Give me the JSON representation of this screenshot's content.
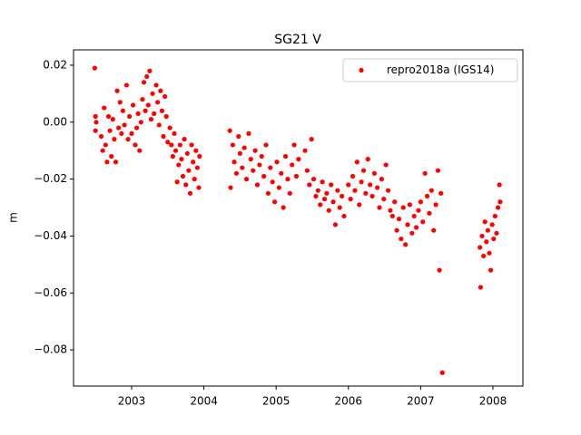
{
  "chart_data": {
    "type": "scatter",
    "title": "SG21 V",
    "y_label": "m",
    "xlim": [
      2002.196,
      2008.415
    ],
    "xticks": [
      2003,
      2004,
      2005,
      2006,
      2007,
      2008
    ],
    "ylim": [
      -0.0927,
      0.0254
    ],
    "yticks": [
      {
        "value": 0.02,
        "label": "0.02"
      },
      {
        "value": 0.0,
        "label": "0.00"
      },
      {
        "value": -0.02,
        "label": "−0.02"
      },
      {
        "value": -0.04,
        "label": "−0.04"
      },
      {
        "value": -0.06,
        "label": "−0.06"
      },
      {
        "value": -0.08,
        "label": "−0.08"
      }
    ],
    "grid": false,
    "legend_position": "upper right",
    "x": [
      2002.49,
      2002.5,
      2002.5,
      2002.51,
      2002.58,
      2002.6,
      2002.62,
      2002.64,
      2002.66,
      2002.68,
      2002.7,
      2002.72,
      2002.74,
      2002.76,
      2002.78,
      2002.8,
      2002.82,
      2002.84,
      2002.86,
      2002.88,
      2002.9,
      2002.93,
      2002.95,
      2002.97,
      2003.0,
      2003.02,
      2003.05,
      2003.07,
      2003.09,
      2003.11,
      2003.13,
      2003.15,
      2003.17,
      2003.19,
      2003.21,
      2003.23,
      2003.25,
      2003.27,
      2003.29,
      2003.31,
      2003.34,
      2003.36,
      2003.38,
      2003.4,
      2003.42,
      2003.44,
      2003.46,
      2003.48,
      2003.5,
      2003.53,
      2003.55,
      2003.57,
      2003.59,
      2003.61,
      2003.63,
      2003.65,
      2003.67,
      2003.69,
      2003.71,
      2003.73,
      2003.75,
      2003.77,
      2003.79,
      2003.81,
      2003.83,
      2003.85,
      2003.87,
      2003.89,
      2003.91,
      2003.93,
      2003.94,
      2004.36,
      2004.37,
      2004.4,
      2004.42,
      2004.45,
      2004.48,
      2004.5,
      2004.53,
      2004.56,
      2004.59,
      2004.62,
      2004.65,
      2004.68,
      2004.71,
      2004.74,
      2004.77,
      2004.8,
      2004.83,
      2004.86,
      2004.89,
      2004.92,
      2004.95,
      2004.98,
      2005.01,
      2005.04,
      2005.07,
      2005.1,
      2005.13,
      2005.16,
      2005.19,
      2005.22,
      2005.25,
      2005.28,
      2005.31,
      2005.4,
      2005.43,
      2005.46,
      2005.49,
      2005.52,
      2005.55,
      2005.58,
      2005.61,
      2005.64,
      2005.67,
      2005.7,
      2005.73,
      2005.76,
      2005.79,
      2005.82,
      2005.85,
      2005.88,
      2005.91,
      2005.94,
      2006.0,
      2006.03,
      2006.06,
      2006.09,
      2006.12,
      2006.15,
      2006.18,
      2006.21,
      2006.24,
      2006.27,
      2006.3,
      2006.33,
      2006.36,
      2006.4,
      2006.43,
      2006.46,
      2006.49,
      2006.52,
      2006.55,
      2006.58,
      2006.61,
      2006.64,
      2006.67,
      2006.7,
      2006.73,
      2006.76,
      2006.79,
      2006.82,
      2006.85,
      2006.88,
      2006.91,
      2006.94,
      2006.97,
      2007.0,
      2007.03,
      2007.06,
      2007.09,
      2007.12,
      2007.15,
      2007.18,
      2007.21,
      2007.24,
      2007.26,
      2007.28,
      2007.3,
      2007.82,
      2007.83,
      2007.85,
      2007.87,
      2007.89,
      2007.91,
      2007.93,
      2007.95,
      2007.97,
      2007.99,
      2008.01,
      2008.03,
      2008.05,
      2008.07,
      2008.09,
      2008.1
    ],
    "series": [
      {
        "name": "repro2018a (IGS14)",
        "color": "#ff0000",
        "values": [
          0.019,
          0.002,
          -0.003,
          0.0,
          -0.005,
          -0.01,
          0.005,
          -0.008,
          -0.014,
          0.002,
          -0.003,
          -0.012,
          0.001,
          -0.006,
          -0.014,
          0.011,
          -0.002,
          0.007,
          -0.004,
          0.004,
          -0.001,
          0.013,
          -0.006,
          0.002,
          -0.004,
          0.006,
          -0.008,
          -0.002,
          0.003,
          -0.01,
          0.0,
          0.008,
          0.014,
          0.004,
          0.016,
          0.006,
          0.018,
          0.001,
          0.01,
          0.003,
          0.013,
          0.007,
          -0.001,
          0.011,
          0.004,
          -0.005,
          0.009,
          0.002,
          -0.007,
          -0.002,
          -0.008,
          -0.012,
          -0.004,
          -0.01,
          -0.021,
          -0.015,
          -0.008,
          -0.013,
          -0.019,
          -0.006,
          -0.022,
          -0.011,
          -0.017,
          -0.025,
          -0.008,
          -0.014,
          -0.02,
          -0.01,
          -0.016,
          -0.023,
          -0.012,
          -0.003,
          -0.023,
          -0.008,
          -0.014,
          -0.018,
          -0.005,
          -0.011,
          -0.016,
          -0.009,
          -0.02,
          -0.004,
          -0.013,
          -0.017,
          -0.01,
          -0.022,
          -0.015,
          -0.012,
          -0.019,
          -0.008,
          -0.025,
          -0.016,
          -0.021,
          -0.028,
          -0.014,
          -0.023,
          -0.018,
          -0.03,
          -0.012,
          -0.02,
          -0.025,
          -0.015,
          -0.008,
          -0.019,
          -0.013,
          -0.01,
          -0.017,
          -0.022,
          -0.006,
          -0.02,
          -0.026,
          -0.024,
          -0.029,
          -0.021,
          -0.027,
          -0.025,
          -0.031,
          -0.022,
          -0.028,
          -0.036,
          -0.024,
          -0.03,
          -0.026,
          -0.033,
          -0.022,
          -0.027,
          -0.019,
          -0.024,
          -0.014,
          -0.029,
          -0.021,
          -0.017,
          -0.025,
          -0.013,
          -0.022,
          -0.026,
          -0.018,
          -0.023,
          -0.03,
          -0.02,
          -0.027,
          -0.015,
          -0.024,
          -0.031,
          -0.033,
          -0.028,
          -0.038,
          -0.034,
          -0.041,
          -0.03,
          -0.043,
          -0.036,
          -0.029,
          -0.039,
          -0.033,
          -0.037,
          -0.031,
          -0.028,
          -0.035,
          -0.018,
          -0.026,
          -0.032,
          -0.024,
          -0.038,
          -0.029,
          -0.017,
          -0.052,
          -0.025,
          -0.088,
          -0.044,
          -0.058,
          -0.04,
          -0.047,
          -0.035,
          -0.042,
          -0.038,
          -0.046,
          -0.052,
          -0.036,
          -0.041,
          -0.033,
          -0.039,
          -0.03,
          -0.022,
          -0.028
        ]
      }
    ]
  }
}
